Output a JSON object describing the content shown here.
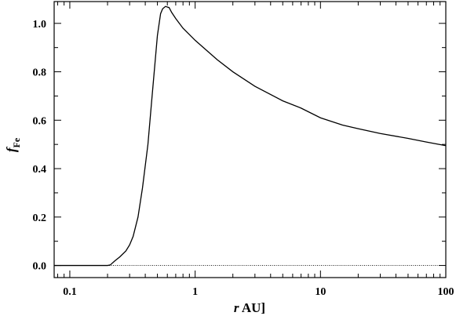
{
  "chart_data": {
    "type": "line",
    "title": "",
    "xlabel": {
      "var": "r",
      "rest": " AU]"
    },
    "ylabel": {
      "var": "f",
      "sub": "Fe"
    },
    "xscale": "log",
    "xlim": [
      0.075,
      100
    ],
    "ylim": [
      -0.05,
      1.09
    ],
    "x_ticks": [
      {
        "value": 0.1,
        "label": "0.1"
      },
      {
        "value": 1,
        "label": "1"
      },
      {
        "value": 10,
        "label": "10"
      },
      {
        "value": 100,
        "label": "100"
      }
    ],
    "y_ticks": [
      {
        "value": 0.0,
        "label": "0.0"
      },
      {
        "value": 0.2,
        "label": "0.2"
      },
      {
        "value": 0.4,
        "label": "0.4"
      },
      {
        "value": 0.6,
        "label": "0.6"
      },
      {
        "value": 0.8,
        "label": "0.8"
      },
      {
        "value": 1.0,
        "label": "1.0"
      }
    ],
    "grid": false,
    "legend": "none",
    "series": [
      {
        "style": "solid",
        "x": [
          0.075,
          0.1,
          0.15,
          0.2,
          0.21,
          0.23,
          0.25,
          0.28,
          0.3,
          0.32,
          0.35,
          0.38,
          0.42,
          0.45,
          0.5,
          0.53,
          0.55,
          0.58,
          0.62,
          0.65,
          0.7,
          0.8,
          1.0,
          1.5,
          2,
          3,
          5,
          7,
          10,
          15,
          20,
          30,
          50,
          70,
          100
        ],
        "y": [
          0.0,
          0.0,
          0.0,
          0.0,
          0.002,
          0.02,
          0.035,
          0.06,
          0.085,
          0.12,
          0.2,
          0.32,
          0.5,
          0.68,
          0.95,
          1.04,
          1.06,
          1.07,
          1.065,
          1.045,
          1.02,
          0.98,
          0.93,
          0.85,
          0.8,
          0.74,
          0.68,
          0.65,
          0.61,
          0.58,
          0.565,
          0.545,
          0.525,
          0.51,
          0.495
        ]
      },
      {
        "style": "dotted",
        "x": [
          0.075,
          100
        ],
        "y": [
          0.0,
          0.0
        ]
      }
    ]
  }
}
